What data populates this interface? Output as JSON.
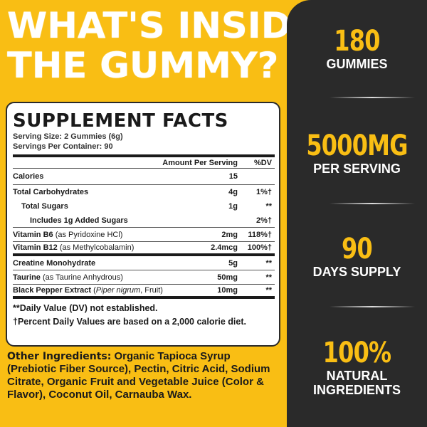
{
  "title": {
    "line1": "WHAT'S INSIDE",
    "line2": "THE GUMMY?"
  },
  "stats": [
    {
      "value": "180",
      "label": "GUMMIES"
    },
    {
      "value": "5000MG",
      "label": "PER SERVING"
    },
    {
      "value": "90",
      "label": "DAYS SUPPLY"
    },
    {
      "value": "100%",
      "label1": "NATURAL",
      "label2": "INGREDIENTS"
    }
  ],
  "facts": {
    "heading": "SUPPLEMENT FACTS",
    "serving_size": "Serving Size: 2 Gummies (6g)",
    "servings_per_container": "Servings Per Container: 90",
    "col_amount": "Amount Per Serving",
    "col_dv": "%DV",
    "rows": [
      {
        "name": "Calories",
        "amount": "15",
        "dv": ""
      },
      {
        "name": "Total Carbohydrates",
        "amount": "4g",
        "dv": "1%†"
      },
      {
        "name": "Total Sugars",
        "amount": "1g",
        "dv": "**"
      },
      {
        "name": "Includes 1g Added Sugars",
        "amount": "",
        "dv": "2%†"
      },
      {
        "name": "Vitamin B6",
        "sub": "(as Pyridoxine HCl)",
        "amount": "2mg",
        "dv": "118%†"
      },
      {
        "name": "Vitamin B12",
        "sub": "(as Methylcobalamin)",
        "amount": "2.4mcg",
        "dv": "100%†"
      },
      {
        "name": "Creatine Monohydrate",
        "amount": "5g",
        "dv": "**"
      },
      {
        "name": "Taurine",
        "sub": "(as Taurine Anhydrous)",
        "amount": "50mg",
        "dv": "**"
      },
      {
        "name": "Black Pepper Extract",
        "sub1": "(",
        "italic": "Piper nigrum",
        "sub2": ", Fruit)",
        "amount": "10mg",
        "dv": "**"
      }
    ],
    "footnote1": "**Daily Value (DV) not established.",
    "footnote2": "†Percent Daily Values are based on a 2,000 calorie diet."
  },
  "other": {
    "label": "Other Ingredients:",
    "text": " Organic Tapioca Syrup (Prebiotic Fiber Source), Pectin, Citric Acid, Sodium Citrate, Organic Fruit and Vegetable Juice (Color & Flavor), Coconut Oil, Carnauba Wax."
  },
  "colors": {
    "yellow": "#F9BE14",
    "dark": "#2a2a2a"
  }
}
